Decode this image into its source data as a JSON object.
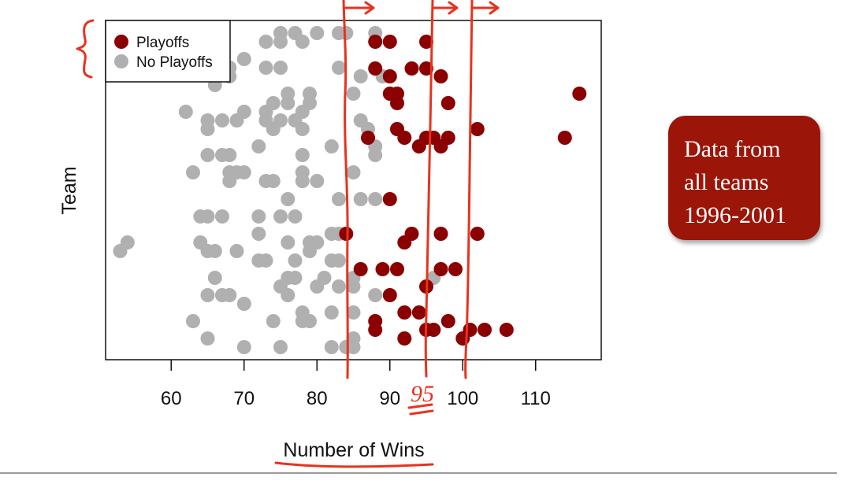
{
  "chart_data": {
    "type": "scatter",
    "title": "",
    "xlabel": "Number of Wins",
    "ylabel": "Team",
    "xlim": [
      51,
      119
    ],
    "xticks": [
      "60",
      "70",
      "80",
      "90",
      "100",
      "110"
    ],
    "legend": {
      "position": "top-left",
      "entries": [
        "Playoffs",
        "No Playoffs"
      ]
    },
    "colors": {
      "Playoffs": "#8b0000",
      "No Playoffs": "#b0b0b0"
    },
    "grid": false,
    "series": [
      {
        "name": "Playoffs",
        "color": "#8b0000",
        "points": [
          [
            88,
            53
          ],
          [
            90,
            53
          ],
          [
            95,
            53
          ],
          [
            88,
            87
          ],
          [
            93,
            87
          ],
          [
            95,
            87
          ],
          [
            90,
            97
          ],
          [
            97,
            97
          ],
          [
            90,
            119
          ],
          [
            91,
            119
          ],
          [
            91,
            131
          ],
          [
            98,
            131
          ],
          [
            116,
            119
          ],
          [
            91,
            164
          ],
          [
            102,
            164
          ],
          [
            87,
            175
          ],
          [
            92,
            175
          ],
          [
            95,
            175
          ],
          [
            96,
            175
          ],
          [
            98,
            175
          ],
          [
            94,
            186
          ],
          [
            97,
            186
          ],
          [
            114,
            175
          ],
          [
            90,
            253
          ],
          [
            84,
            297
          ],
          [
            93,
            297
          ],
          [
            97,
            297
          ],
          [
            102,
            297
          ],
          [
            92,
            308
          ],
          [
            86,
            342
          ],
          [
            89,
            342
          ],
          [
            91,
            342
          ],
          [
            97,
            342
          ],
          [
            99,
            342
          ],
          [
            95,
            364
          ],
          [
            90,
            375
          ],
          [
            92,
            397
          ],
          [
            94,
            397
          ],
          [
            98,
            408
          ],
          [
            88,
            408
          ],
          [
            88,
            419
          ],
          [
            95,
            419
          ],
          [
            96,
            419
          ],
          [
            101,
            419
          ],
          [
            103,
            419
          ],
          [
            106,
            419
          ],
          [
            92,
            430
          ],
          [
            100,
            430
          ]
        ]
      },
      {
        "name": "No Playoffs",
        "color": "#b0b0b0",
        "points": [
          [
            73,
            53
          ],
          [
            75,
            42
          ],
          [
            77,
            42
          ],
          [
            80,
            42
          ],
          [
            83,
            42
          ],
          [
            84,
            42
          ],
          [
            88,
            42
          ],
          [
            78,
            53
          ],
          [
            75,
            53
          ],
          [
            70,
            75
          ],
          [
            68,
            86
          ],
          [
            73,
            86
          ],
          [
            75,
            86
          ],
          [
            83,
            86
          ],
          [
            86,
            97
          ],
          [
            68,
            97
          ],
          [
            89,
            97
          ],
          [
            66,
            108
          ],
          [
            85,
            119
          ],
          [
            76,
            119
          ],
          [
            79,
            119
          ],
          [
            74,
            131
          ],
          [
            76,
            131
          ],
          [
            79,
            131
          ],
          [
            73,
            142
          ],
          [
            78,
            142
          ],
          [
            62,
            142
          ],
          [
            70,
            142
          ],
          [
            69,
            153
          ],
          [
            65,
            153
          ],
          [
            67,
            153
          ],
          [
            73,
            153
          ],
          [
            75,
            153
          ],
          [
            77,
            153
          ],
          [
            86,
            153
          ],
          [
            74,
            164
          ],
          [
            78,
            164
          ],
          [
            87,
            164
          ],
          [
            65,
            164
          ],
          [
            88,
            186
          ],
          [
            72,
            186
          ],
          [
            82,
            186
          ],
          [
            65,
            197
          ],
          [
            67,
            197
          ],
          [
            68,
            197
          ],
          [
            78,
            197
          ],
          [
            88,
            197
          ],
          [
            68,
            219
          ],
          [
            69,
            219
          ],
          [
            70,
            219
          ],
          [
            78,
            219
          ],
          [
            85,
            219
          ],
          [
            63,
            219
          ],
          [
            68,
            230
          ],
          [
            73,
            230
          ],
          [
            74,
            230
          ],
          [
            78,
            230
          ],
          [
            80,
            230
          ],
          [
            76,
            253
          ],
          [
            83,
            253
          ],
          [
            86,
            253
          ],
          [
            88,
            253
          ],
          [
            64,
            275
          ],
          [
            65,
            275
          ],
          [
            67,
            275
          ],
          [
            72,
            275
          ],
          [
            75,
            275
          ],
          [
            77,
            275
          ],
          [
            72,
            297
          ],
          [
            82,
            297
          ],
          [
            83,
            297
          ],
          [
            54,
            308
          ],
          [
            64,
            308
          ],
          [
            76,
            308
          ],
          [
            79,
            308
          ],
          [
            80,
            308
          ],
          [
            53,
            319
          ],
          [
            65,
            319
          ],
          [
            66,
            319
          ],
          [
            69,
            319
          ],
          [
            79,
            319
          ],
          [
            72,
            331
          ],
          [
            73,
            331
          ],
          [
            77,
            331
          ],
          [
            82,
            331
          ],
          [
            83,
            331
          ],
          [
            76,
            353
          ],
          [
            77,
            353
          ],
          [
            81,
            353
          ],
          [
            85,
            353
          ],
          [
            96,
            353
          ],
          [
            66,
            353
          ],
          [
            75,
            364
          ],
          [
            80,
            364
          ],
          [
            83,
            364
          ],
          [
            85,
            364
          ],
          [
            76,
            375
          ],
          [
            65,
            375
          ],
          [
            67,
            375
          ],
          [
            68,
            375
          ],
          [
            88,
            375
          ],
          [
            70,
            386
          ],
          [
            78,
            397
          ],
          [
            82,
            397
          ],
          [
            85,
            397
          ],
          [
            63,
            408
          ],
          [
            74,
            408
          ],
          [
            78,
            408
          ],
          [
            79,
            408
          ],
          [
            85,
            430
          ],
          [
            65,
            430
          ],
          [
            70,
            441
          ],
          [
            75,
            441
          ],
          [
            82,
            441
          ],
          [
            84,
            441
          ],
          [
            85,
            441
          ]
        ]
      }
    ]
  },
  "callout": {
    "lines": [
      "Data from",
      "all teams",
      "1996-2001"
    ]
  },
  "annotation": {
    "handwritten_label": "95"
  }
}
